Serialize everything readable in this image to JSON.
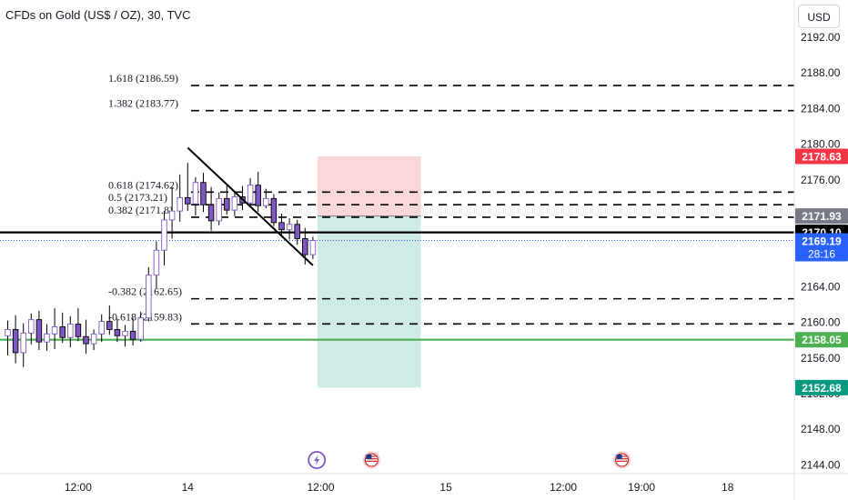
{
  "header": {
    "title": "CFDs on Gold (US$ / OZ), 30, TVC",
    "currency_button": "USD"
  },
  "colors": {
    "bull": "#26a69a",
    "bear": "#ef5350",
    "candle_body": "#7e57c2",
    "current_price": "#2962ff",
    "stop_loss": "#f23645",
    "take_profit": "#089981",
    "green_line": "#4caf50",
    "black_line": "#000000",
    "axis_text": "#131722"
  },
  "chart_data": {
    "type": "candlestick",
    "symbol": "CFDs on Gold (US$ / OZ)",
    "interval": "30",
    "source": "TVC",
    "currency": "USD",
    "y_axis": {
      "range": [
        2141,
        2194.7
      ],
      "ticks": [
        "2192.00",
        "2188.00",
        "2184.00",
        "2180.00",
        "2176.00",
        "2172.00",
        "2168.00",
        "2164.00",
        "2160.00",
        "2156.00",
        "2152.00",
        "2148.00",
        "2144.00"
      ]
    },
    "x_axis": {
      "ticks": [
        {
          "label": "12:00",
          "bar": 9
        },
        {
          "label": "14",
          "bar": 23
        },
        {
          "label": "12:00",
          "bar": 40
        },
        {
          "label": "15",
          "bar": 56
        },
        {
          "label": "12:00",
          "bar": 71
        },
        {
          "label": "19:00",
          "bar": 81
        },
        {
          "label": "18",
          "bar": 92
        }
      ]
    },
    "candles": [
      {
        "o": 2158.5,
        "h": 2160.2,
        "l": 2156.3,
        "c": 2159.2
      },
      {
        "o": 2159.2,
        "h": 2160.8,
        "l": 2155.4,
        "c": 2156.6
      },
      {
        "o": 2156.6,
        "h": 2159.9,
        "l": 2155.0,
        "c": 2158.8
      },
      {
        "o": 2158.8,
        "h": 2161.0,
        "l": 2157.5,
        "c": 2160.3
      },
      {
        "o": 2160.3,
        "h": 2161.3,
        "l": 2156.9,
        "c": 2157.8
      },
      {
        "o": 2157.8,
        "h": 2159.8,
        "l": 2156.8,
        "c": 2158.7
      },
      {
        "o": 2158.7,
        "h": 2161.6,
        "l": 2157.0,
        "c": 2159.5
      },
      {
        "o": 2159.5,
        "h": 2161.1,
        "l": 2157.7,
        "c": 2158.3
      },
      {
        "o": 2158.3,
        "h": 2160.7,
        "l": 2157.2,
        "c": 2159.8
      },
      {
        "o": 2159.8,
        "h": 2161.6,
        "l": 2157.9,
        "c": 2158.4
      },
      {
        "o": 2158.4,
        "h": 2160.3,
        "l": 2156.5,
        "c": 2157.6
      },
      {
        "o": 2157.6,
        "h": 2159.2,
        "l": 2156.9,
        "c": 2158.7
      },
      {
        "o": 2158.7,
        "h": 2160.9,
        "l": 2157.8,
        "c": 2160.1
      },
      {
        "o": 2160.1,
        "h": 2161.9,
        "l": 2158.6,
        "c": 2159.2
      },
      {
        "o": 2159.2,
        "h": 2160.4,
        "l": 2157.8,
        "c": 2158.5
      },
      {
        "o": 2158.5,
        "h": 2159.7,
        "l": 2157.3,
        "c": 2159.0
      },
      {
        "o": 2159.0,
        "h": 2160.5,
        "l": 2157.4,
        "c": 2158.1
      },
      {
        "o": 2158.1,
        "h": 2161.2,
        "l": 2157.8,
        "c": 2160.5
      },
      {
        "o": 2160.5,
        "h": 2166.2,
        "l": 2160.1,
        "c": 2165.3
      },
      {
        "o": 2165.3,
        "h": 2169.1,
        "l": 2163.8,
        "c": 2168.1
      },
      {
        "o": 2168.1,
        "h": 2172.5,
        "l": 2166.4,
        "c": 2171.5
      },
      {
        "o": 2171.5,
        "h": 2175.2,
        "l": 2169.4,
        "c": 2172.5
      },
      {
        "o": 2172.5,
        "h": 2176.6,
        "l": 2171.3,
        "c": 2174.0
      },
      {
        "o": 2174.0,
        "h": 2177.9,
        "l": 2172.5,
        "c": 2173.3
      },
      {
        "o": 2173.3,
        "h": 2176.3,
        "l": 2172.0,
        "c": 2175.7
      },
      {
        "o": 2175.7,
        "h": 2176.8,
        "l": 2172.4,
        "c": 2173.2
      },
      {
        "o": 2173.2,
        "h": 2175.2,
        "l": 2170.3,
        "c": 2171.4
      },
      {
        "o": 2171.4,
        "h": 2174.6,
        "l": 2170.9,
        "c": 2173.9
      },
      {
        "o": 2173.9,
        "h": 2175.4,
        "l": 2172.1,
        "c": 2172.6
      },
      {
        "o": 2172.6,
        "h": 2174.7,
        "l": 2171.9,
        "c": 2174.1
      },
      {
        "o": 2174.1,
        "h": 2175.3,
        "l": 2172.6,
        "c": 2173.4
      },
      {
        "o": 2173.4,
        "h": 2176.2,
        "l": 2172.9,
        "c": 2175.4
      },
      {
        "o": 2175.4,
        "h": 2176.9,
        "l": 2172.4,
        "c": 2173.1
      },
      {
        "o": 2173.1,
        "h": 2175.0,
        "l": 2172.8,
        "c": 2173.9
      },
      {
        "o": 2173.9,
        "h": 2174.4,
        "l": 2170.8,
        "c": 2171.2
      },
      {
        "o": 2171.2,
        "h": 2172.2,
        "l": 2169.8,
        "c": 2170.4
      },
      {
        "o": 2170.4,
        "h": 2171.7,
        "l": 2169.3,
        "c": 2171.0
      },
      {
        "o": 2171.0,
        "h": 2171.5,
        "l": 2168.7,
        "c": 2169.4
      },
      {
        "o": 2169.4,
        "h": 2170.6,
        "l": 2166.5,
        "c": 2167.6
      },
      {
        "o": 2167.6,
        "h": 2169.6,
        "l": 2167.1,
        "c": 2169.19
      }
    ],
    "fibonacci_levels": [
      {
        "label": "1.618 (2186.59)",
        "price": 2186.59
      },
      {
        "label": "1.382 (2183.77)",
        "price": 2183.77
      },
      {
        "label": "0.618 (2174.62)",
        "price": 2174.62
      },
      {
        "label": "0.5 (2173.21)",
        "price": 2173.21
      },
      {
        "label": "0.382 (2171.8)",
        "price": 2171.8
      },
      {
        "label": "-0.382 (2162.65)",
        "price": 2162.65
      },
      {
        "label": "-0.618 (2159.83)",
        "price": 2159.83
      }
    ],
    "trendline": {
      "start": {
        "bar": 23,
        "price": 2179.6
      },
      "end": {
        "bar": 39,
        "price": 2166.4
      }
    },
    "horizontal_lines": [
      {
        "price": 2170.1,
        "color": "#000000",
        "label": "2170.10"
      },
      {
        "price": 2158.05,
        "color": "#4caf50",
        "label": "2158.05"
      }
    ],
    "position": {
      "entry": 2171.93,
      "stop": 2178.63,
      "target": 2152.68,
      "start_bar": 39.6,
      "end_bar": 52.8
    },
    "current_price": {
      "value": "2169.19",
      "countdown": "28:16"
    },
    "events": [
      {
        "type": "lightning",
        "bar": 39.5
      },
      {
        "type": "us-flag",
        "bar": 46.5
      },
      {
        "type": "us-flag",
        "bar": 78.5
      }
    ]
  }
}
